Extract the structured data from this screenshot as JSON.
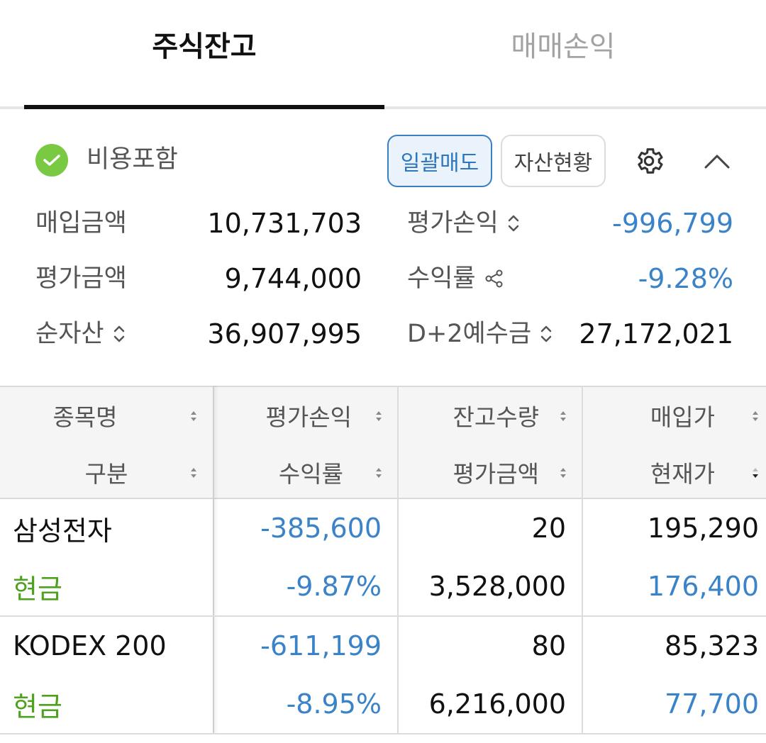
{
  "tabs": [
    {
      "label": "주식잔고",
      "active": true
    },
    {
      "label": "매매손익",
      "active": false
    }
  ],
  "summary": {
    "include_fee_label": "비용포함",
    "buttons": {
      "bulk_sell": "일괄매도",
      "asset_status": "자산현황"
    },
    "rows": [
      {
        "left_label": "매입금액",
        "left_value": "10,731,703",
        "right_label": "평가손익",
        "right_value": "-996,799"
      },
      {
        "left_label": "평가금액",
        "left_value": "9,744,000",
        "right_label": "수익률",
        "right_value": "-9.28%"
      },
      {
        "left_label": "순자산",
        "left_value": "36,907,995",
        "right_label": "D+2예수금",
        "right_value": "27,172,021"
      }
    ]
  },
  "table": {
    "headers_top": [
      "종목명",
      "평가손익",
      "잔고수량",
      "매입가"
    ],
    "headers_bottom": [
      "구분",
      "수익률",
      "평가금액",
      "현재가"
    ],
    "rows": [
      {
        "name": "삼성전자",
        "type": "현금",
        "pl": "-385,600",
        "rate": "-9.87%",
        "qty": "20",
        "eval": "3,528,000",
        "buy_price": "195,290",
        "cur_price": "176,400"
      },
      {
        "name": "KODEX 200",
        "type": "현금",
        "pl": "-611,199",
        "rate": "-8.95%",
        "qty": "80",
        "eval": "6,216,000",
        "buy_price": "85,323",
        "cur_price": "77,700"
      }
    ]
  },
  "colors": {
    "negative": "#3a83c8",
    "cash": "#4ea21e",
    "check": "#7ac943"
  }
}
